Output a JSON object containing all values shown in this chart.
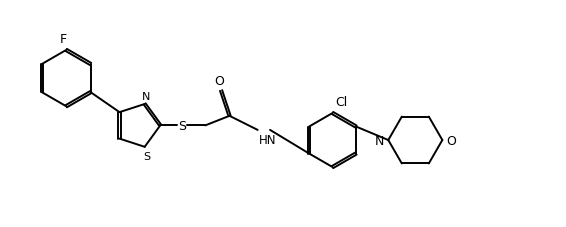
{
  "background_color": "#ffffff",
  "line_color": "#000000",
  "line_width": 1.4,
  "fig_width": 5.66,
  "fig_height": 2.28,
  "dpi": 100,
  "xlim": [
    0,
    10
  ],
  "ylim": [
    0,
    4
  ]
}
